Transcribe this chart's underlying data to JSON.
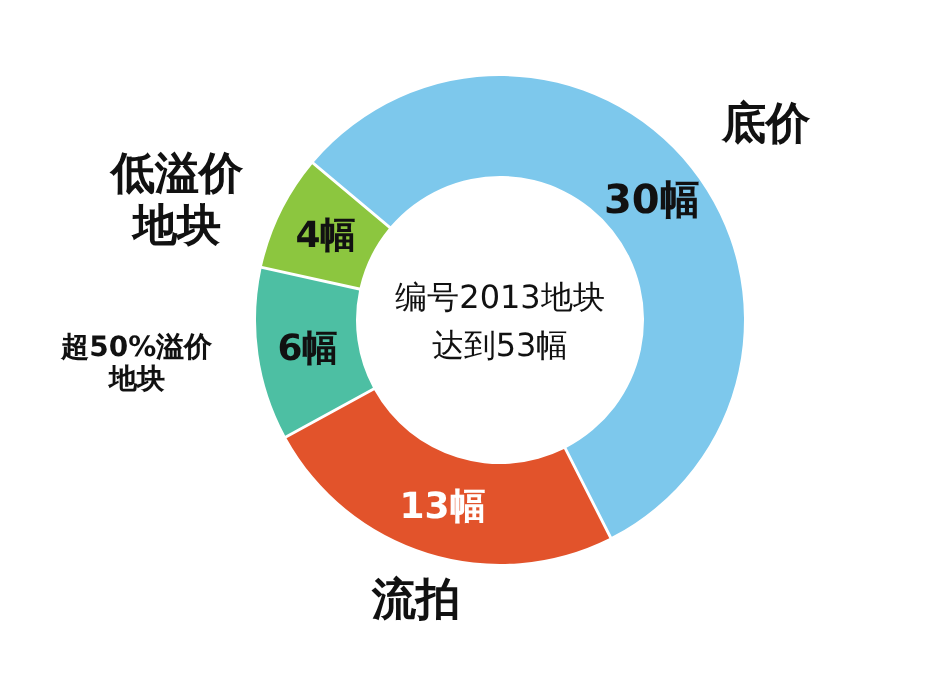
{
  "chart_data": {
    "type": "donut",
    "categories": [
      "底价",
      "流拍",
      "超50%溢价地块",
      "低溢价地块"
    ],
    "values": [
      30,
      13,
      6,
      4
    ],
    "value_labels": [
      "30幅",
      "13幅",
      "6幅",
      "4幅"
    ],
    "colors": [
      "#7dc8ec",
      "#e2532b",
      "#4dbfa3",
      "#8cc63f"
    ],
    "annotations": [
      "编号2013地块",
      "达到53幅"
    ]
  }
}
